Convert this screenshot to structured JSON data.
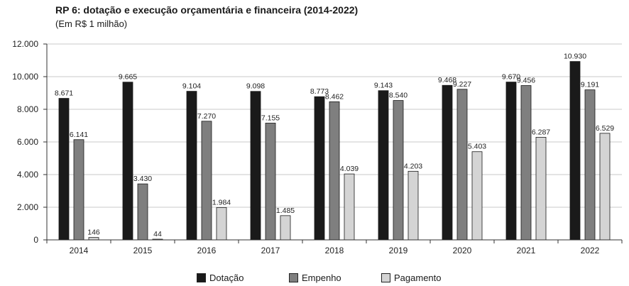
{
  "chart_data": {
    "type": "bar",
    "title": "RP 6: dotação e execução orçamentária e financeira (2014-2022)",
    "subtitle": "(Em R$ 1 milhão)",
    "categories": [
      "2014",
      "2015",
      "2016",
      "2017",
      "2018",
      "2019",
      "2020",
      "2021",
      "2022"
    ],
    "series": [
      {
        "name": "Dotação",
        "color": "#1a1a1a",
        "values": [
          8671,
          9665,
          9104,
          9098,
          8773,
          9143,
          9468,
          9670,
          10930
        ],
        "labels": [
          "8.671",
          "9.665",
          "9.104",
          "9.098",
          "8.773",
          "9.143",
          "9.468",
          "9.670",
          "10.930"
        ]
      },
      {
        "name": "Empenho",
        "color": "#7f7f7f",
        "values": [
          6141,
          3430,
          7270,
          7155,
          8462,
          8540,
          9227,
          9456,
          9191
        ],
        "labels": [
          "6.141",
          "3.430",
          "7.270",
          "7.155",
          "8.462",
          "8.540",
          "9.227",
          "9.456",
          "9.191"
        ]
      },
      {
        "name": "Pagamento",
        "color": "#d4d4d4",
        "values": [
          146,
          44,
          1984,
          1485,
          4039,
          4203,
          5403,
          6287,
          6529
        ],
        "labels": [
          "146",
          "44",
          "1.984",
          "1.485",
          "4.039",
          "4.203",
          "5.403",
          "6.287",
          "6.529"
        ]
      }
    ],
    "ylim": [
      0,
      12000
    ],
    "yticks": [
      0,
      2000,
      4000,
      6000,
      8000,
      10000,
      12000
    ],
    "ytick_labels": [
      "0",
      "2.000",
      "4.000",
      "6.000",
      "8.000",
      "10.000",
      "12.000"
    ],
    "grid": true,
    "legend_position": "bottom"
  }
}
